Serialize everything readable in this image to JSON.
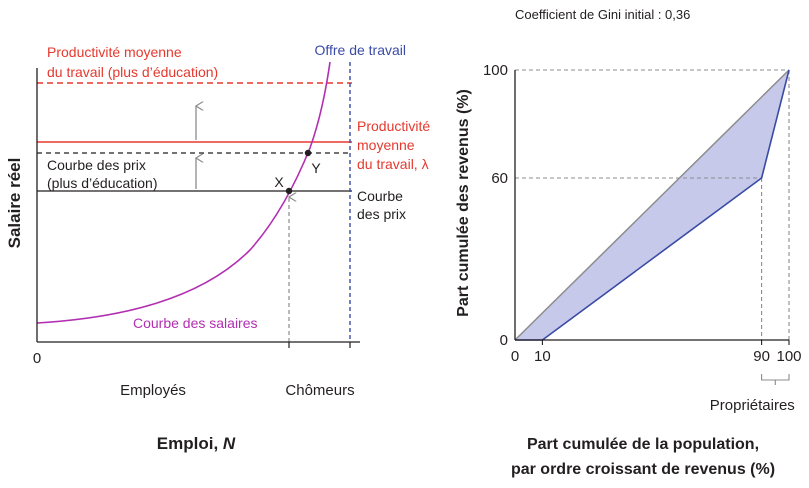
{
  "chart_data": [
    {
      "type": "line",
      "ylabel": "Salaire réel",
      "xlabel": "Emploi, ",
      "xlabel_variable": "N",
      "x_tick_labels": [
        "0"
      ],
      "x_regions": [
        "Employés",
        "Chômeurs"
      ],
      "series": [
        {
          "name": [
            "Productivité moyenne",
            "du travail (plus d’éducation)"
          ],
          "color": "#e5392e",
          "style": "dashed"
        },
        {
          "name": [
            "Productivité",
            "moyenne",
            "du travail, λ"
          ],
          "color": "#e5392e",
          "style": "solid"
        },
        {
          "name": [
            "Courbe des prix",
            "(plus d’éducation)"
          ],
          "color": "#231f20",
          "style": "dashed"
        },
        {
          "name": [
            "Courbe",
            "des prix"
          ],
          "color": "#231f20",
          "style": "solid"
        },
        {
          "name": [
            "Offre de travail"
          ],
          "color": "#3a4ba5",
          "style": "dashed"
        },
        {
          "name": [
            "Courbe des salaires"
          ],
          "color": "#b22fb2",
          "style": "solid"
        }
      ],
      "points": [
        "X",
        "Y"
      ]
    },
    {
      "type": "line",
      "title": "Coefficient de Gini initial : 0,36",
      "ylabel": "Part cumulée des revenus (%)",
      "xlabel": [
        "Part cumulée de la population,",
        "par ordre croissant de revenus (%)"
      ],
      "xlim": [
        0,
        100
      ],
      "ylim": [
        0,
        100
      ],
      "x_ticks": [
        0,
        10,
        90,
        100
      ],
      "y_ticks": [
        0,
        60,
        100
      ],
      "grid": false,
      "series": [
        {
          "x": [
            0,
            100
          ],
          "y": [
            0,
            100
          ],
          "color": "#8c8c8c"
        },
        {
          "x": [
            0,
            10,
            90,
            100
          ],
          "y": [
            0,
            0,
            60,
            100
          ],
          "color": "#3a4ba5",
          "fill": "#c6c9ea"
        }
      ],
      "annotation": {
        "text": "Propriétaires",
        "x_range": [
          90,
          100
        ]
      }
    }
  ]
}
